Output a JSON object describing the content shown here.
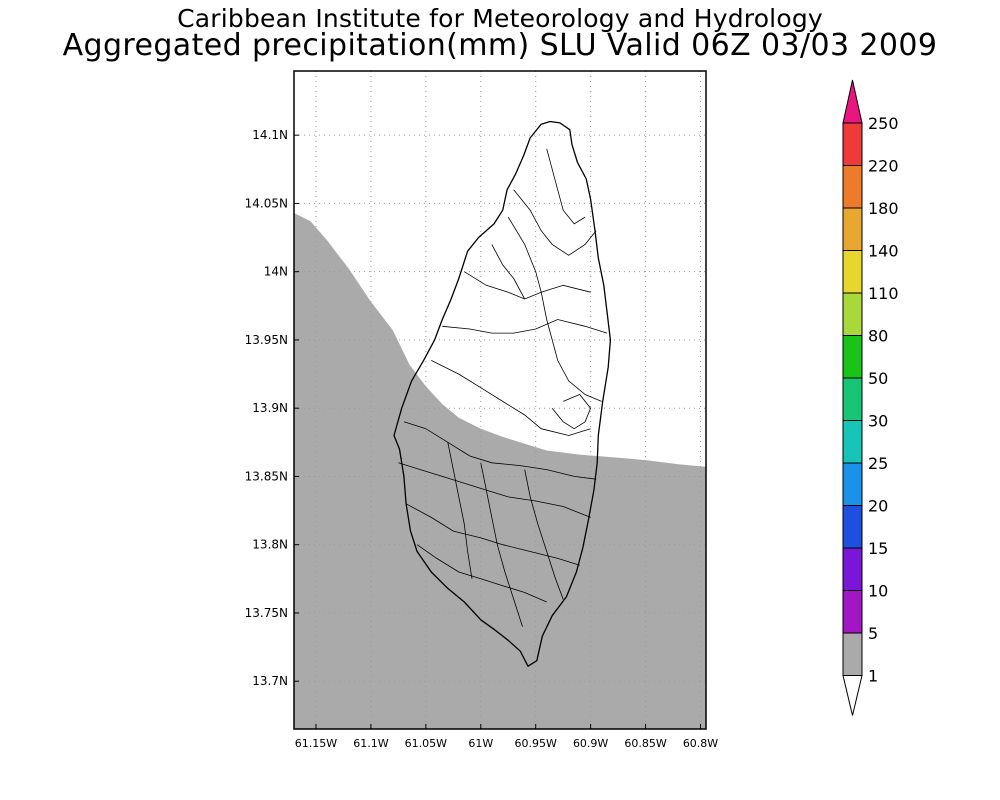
{
  "title_line1": "Caribbean Institute for Meteorology and Hydrology",
  "title_line2": "Aggregated precipitation(mm) SLU Valid 06Z 03/03 2009",
  "map": {
    "lat_ticks": [
      "14.1N",
      "14.05N",
      "14N",
      "13.95N",
      "13.9N",
      "13.85N",
      "13.8N",
      "13.75N",
      "13.7N"
    ],
    "lon_ticks": [
      "61.15W",
      "61.1W",
      "61.05W",
      "61W",
      "60.95W",
      "60.9W",
      "60.85W",
      "60.8W"
    ],
    "lat_range": [
      13.665,
      14.147
    ],
    "lon_range": [
      -61.17,
      -60.795
    ],
    "precip_boundary": [
      [
        -61.17,
        14.043
      ],
      [
        -61.155,
        14.037
      ],
      [
        -61.14,
        14.023
      ],
      [
        -61.12,
        14.002
      ],
      [
        -61.1,
        13.978
      ],
      [
        -61.08,
        13.957
      ],
      [
        -61.065,
        13.932
      ],
      [
        -61.05,
        13.916
      ],
      [
        -61.035,
        13.903
      ],
      [
        -61.02,
        13.893
      ],
      [
        -61.0,
        13.885
      ],
      [
        -60.98,
        13.879
      ],
      [
        -60.96,
        13.874
      ],
      [
        -60.94,
        13.869
      ],
      [
        -60.91,
        13.866
      ],
      [
        -60.88,
        13.864
      ],
      [
        -60.85,
        13.862
      ],
      [
        -60.82,
        13.859
      ],
      [
        -60.795,
        13.857
      ]
    ],
    "precip_fill_color": "#aaaaaa",
    "island_outline": [
      [
        -60.937,
        14.11
      ],
      [
        -60.928,
        14.109
      ],
      [
        -60.919,
        14.104
      ],
      [
        -60.917,
        14.093
      ],
      [
        -60.912,
        14.08
      ],
      [
        -60.904,
        14.068
      ],
      [
        -60.9,
        14.053
      ],
      [
        -60.896,
        14.03
      ],
      [
        -60.893,
        14.01
      ],
      [
        -60.888,
        13.99
      ],
      [
        -60.885,
        13.97
      ],
      [
        -60.882,
        13.95
      ],
      [
        -60.884,
        13.93
      ],
      [
        -60.889,
        13.905
      ],
      [
        -60.893,
        13.88
      ],
      [
        -60.894,
        13.86
      ],
      [
        -60.897,
        13.84
      ],
      [
        -60.902,
        13.818
      ],
      [
        -60.907,
        13.798
      ],
      [
        -60.913,
        13.78
      ],
      [
        -60.922,
        13.762
      ],
      [
        -60.935,
        13.748
      ],
      [
        -60.944,
        13.733
      ],
      [
        -60.949,
        13.715
      ],
      [
        -60.957,
        13.711
      ],
      [
        -60.964,
        13.722
      ],
      [
        -60.975,
        13.73
      ],
      [
        -60.988,
        13.738
      ],
      [
        -61.0,
        13.745
      ],
      [
        -61.015,
        13.758
      ],
      [
        -61.03,
        13.768
      ],
      [
        -61.045,
        13.78
      ],
      [
        -61.058,
        13.795
      ],
      [
        -61.064,
        13.81
      ],
      [
        -61.068,
        13.83
      ],
      [
        -61.07,
        13.85
      ],
      [
        -61.074,
        13.87
      ],
      [
        -61.079,
        13.88
      ],
      [
        -61.072,
        13.9
      ],
      [
        -61.063,
        13.92
      ],
      [
        -61.052,
        13.935
      ],
      [
        -61.042,
        13.95
      ],
      [
        -61.035,
        13.965
      ],
      [
        -61.027,
        13.98
      ],
      [
        -61.02,
        13.995
      ],
      [
        -61.012,
        14.015
      ],
      [
        -61.002,
        14.025
      ],
      [
        -60.988,
        14.035
      ],
      [
        -60.98,
        14.045
      ],
      [
        -60.976,
        14.06
      ],
      [
        -60.968,
        14.072
      ],
      [
        -60.961,
        14.085
      ],
      [
        -60.955,
        14.098
      ],
      [
        -60.945,
        14.108
      ]
    ],
    "watershed_lines": [
      [
        [
          -60.97,
          14.06
        ],
        [
          -60.955,
          14.045
        ],
        [
          -60.945,
          14.03
        ],
        [
          -60.935,
          14.02
        ],
        [
          -60.92,
          14.012
        ],
        [
          -60.905,
          14.02
        ],
        [
          -60.895,
          14.03
        ]
      ],
      [
        [
          -60.975,
          14.04
        ],
        [
          -60.96,
          14.02
        ],
        [
          -60.95,
          14.0
        ],
        [
          -60.945,
          13.985
        ],
        [
          -60.94,
          13.965
        ],
        [
          -60.935,
          13.95
        ],
        [
          -60.93,
          13.935
        ],
        [
          -60.92,
          13.92
        ],
        [
          -60.905,
          13.91
        ],
        [
          -60.89,
          13.905
        ]
      ],
      [
        [
          -61.015,
          14.0
        ],
        [
          -60.995,
          13.99
        ],
        [
          -60.975,
          13.985
        ],
        [
          -60.96,
          13.98
        ],
        [
          -60.945,
          13.985
        ],
        [
          -60.925,
          13.99
        ],
        [
          -60.9,
          13.985
        ]
      ],
      [
        [
          -61.035,
          13.96
        ],
        [
          -61.01,
          13.958
        ],
        [
          -60.99,
          13.955
        ],
        [
          -60.97,
          13.955
        ],
        [
          -60.95,
          13.958
        ],
        [
          -60.93,
          13.965
        ],
        [
          -60.905,
          13.96
        ],
        [
          -60.885,
          13.955
        ]
      ],
      [
        [
          -61.045,
          13.935
        ],
        [
          -61.02,
          13.925
        ],
        [
          -61.0,
          13.915
        ],
        [
          -60.98,
          13.905
        ],
        [
          -60.96,
          13.895
        ],
        [
          -60.945,
          13.885
        ],
        [
          -60.92,
          13.88
        ],
        [
          -60.9,
          13.885
        ]
      ],
      [
        [
          -61.07,
          13.89
        ],
        [
          -61.05,
          13.885
        ],
        [
          -61.03,
          13.875
        ],
        [
          -61.01,
          13.865
        ],
        [
          -60.99,
          13.86
        ],
        [
          -60.965,
          13.858
        ],
        [
          -60.94,
          13.855
        ],
        [
          -60.915,
          13.85
        ],
        [
          -60.895,
          13.848
        ]
      ],
      [
        [
          -61.075,
          13.86
        ],
        [
          -61.055,
          13.855
        ],
        [
          -61.035,
          13.85
        ],
        [
          -61.015,
          13.845
        ],
        [
          -60.995,
          13.84
        ],
        [
          -60.975,
          13.835
        ],
        [
          -60.95,
          13.832
        ],
        [
          -60.925,
          13.828
        ],
        [
          -60.9,
          13.82
        ]
      ],
      [
        [
          -61.068,
          13.83
        ],
        [
          -61.045,
          13.82
        ],
        [
          -61.025,
          13.81
        ],
        [
          -61.0,
          13.805
        ],
        [
          -60.98,
          13.8
        ],
        [
          -60.955,
          13.795
        ],
        [
          -60.93,
          13.79
        ],
        [
          -60.91,
          13.785
        ]
      ],
      [
        [
          -61.058,
          13.8
        ],
        [
          -61.04,
          13.79
        ],
        [
          -61.02,
          13.78
        ],
        [
          -61.0,
          13.775
        ],
        [
          -60.98,
          13.77
        ],
        [
          -60.96,
          13.765
        ],
        [
          -60.94,
          13.758
        ]
      ],
      [
        [
          -61.0,
          13.86
        ],
        [
          -60.995,
          13.84
        ],
        [
          -60.99,
          13.82
        ],
        [
          -60.985,
          13.8
        ],
        [
          -60.978,
          13.78
        ],
        [
          -60.97,
          13.76
        ],
        [
          -60.962,
          13.74
        ]
      ],
      [
        [
          -61.03,
          13.875
        ],
        [
          -61.025,
          13.855
        ],
        [
          -61.02,
          13.835
        ],
        [
          -61.015,
          13.815
        ],
        [
          -61.012,
          13.795
        ],
        [
          -61.008,
          13.775
        ]
      ],
      [
        [
          -60.96,
          13.855
        ],
        [
          -60.955,
          13.835
        ],
        [
          -60.948,
          13.815
        ],
        [
          -60.94,
          13.795
        ],
        [
          -60.932,
          13.775
        ],
        [
          -60.925,
          13.76
        ]
      ],
      [
        [
          -60.94,
          14.09
        ],
        [
          -60.935,
          14.075
        ],
        [
          -60.93,
          14.06
        ],
        [
          -60.925,
          14.045
        ],
        [
          -60.915,
          14.035
        ],
        [
          -60.905,
          14.04
        ]
      ],
      [
        [
          -60.99,
          14.02
        ],
        [
          -60.98,
          14.005
        ],
        [
          -60.97,
          13.995
        ],
        [
          -60.96,
          13.98
        ]
      ],
      [
        [
          -60.935,
          13.9
        ],
        [
          -60.925,
          13.89
        ],
        [
          -60.915,
          13.885
        ],
        [
          -60.905,
          13.89
        ],
        [
          -60.9,
          13.9
        ],
        [
          -60.91,
          13.91
        ],
        [
          -60.925,
          13.905
        ]
      ]
    ],
    "grid_color": "#999999"
  },
  "colorbar": {
    "labels": [
      "250",
      "220",
      "180",
      "140",
      "110",
      "80",
      "50",
      "30",
      "25",
      "20",
      "15",
      "10",
      "5",
      "1"
    ],
    "colors": [
      "#ef3a3a",
      "#ee7b2a",
      "#e8a830",
      "#e7d62c",
      "#a8d83a",
      "#18c418",
      "#16c676",
      "#17c4b8",
      "#1a92ea",
      "#1f4fe0",
      "#7a16d8",
      "#a216c4",
      "#aaaaaa"
    ],
    "top_triangle_color": "#e8167e",
    "bottom_triangle_color": "#ffffff"
  }
}
